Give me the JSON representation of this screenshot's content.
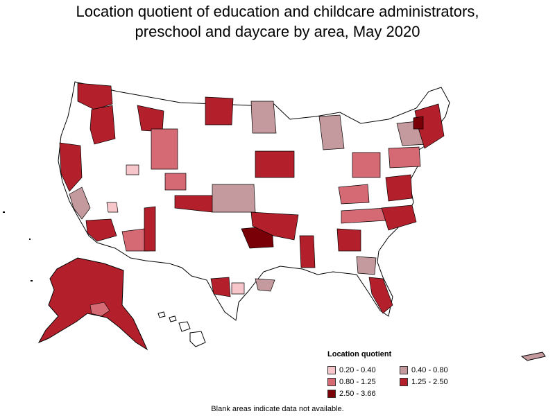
{
  "title_line1": "Location quotient of education and childcare administrators,",
  "title_line2": "preschool and daycare by area, May 2020",
  "legend": {
    "title": "Location quotient",
    "items": [
      {
        "label": "0.20 - 0.40",
        "color": "#f7c6cb"
      },
      {
        "label": "0.40 - 0.80",
        "color": "#c49a9e"
      },
      {
        "label": "0.80 - 1.25",
        "color": "#d56a75"
      },
      {
        "label": "1.25 - 2.50",
        "color": "#b3202c"
      },
      {
        "label": "2.50 - 3.66",
        "color": "#7a0008"
      }
    ]
  },
  "footnote": "Blank areas indicate data not available.",
  "colors": {
    "no_data": "#ffffff",
    "border": "#000000"
  }
}
